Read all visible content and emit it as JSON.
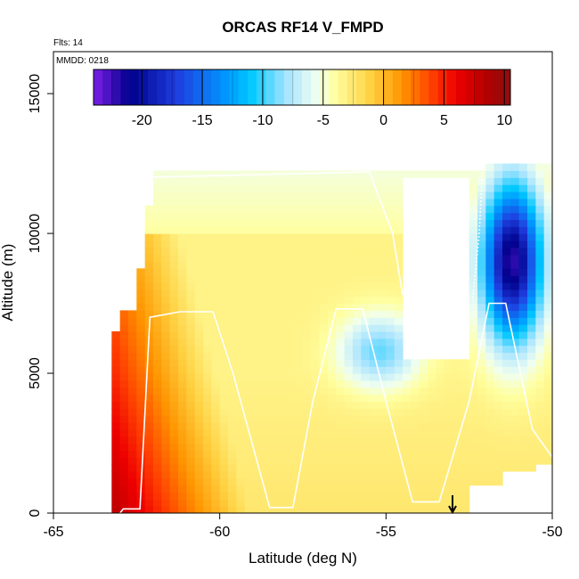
{
  "chart_data": {
    "type": "heatmap",
    "title": "ORCAS RF14 V_FMPD",
    "annotations": {
      "flights": "Flts: 14",
      "date": "MMDD: 0218"
    },
    "xlabel": "Latitude (deg N)",
    "ylabel": "Altitude (m)",
    "xlim": [
      -65,
      -50
    ],
    "ylim": [
      0,
      16500
    ],
    "xticks": [
      -65,
      -60,
      -55,
      -50
    ],
    "xtick_labels": [
      "-65",
      "-60",
      "-55",
      "-50"
    ],
    "yticks": [
      0,
      5000,
      10000,
      15000
    ],
    "ytick_labels": [
      "0",
      "5000",
      "10000",
      "15000"
    ],
    "colorbar": {
      "range": [
        -24,
        10.5
      ],
      "ticks": [
        -20,
        -15,
        -10,
        -5,
        0,
        5,
        10
      ],
      "tick_labels": [
        "-20",
        "-15",
        "-10",
        "-5",
        "0",
        "5",
        "10"
      ],
      "stops": [
        {
          "v": -24,
          "color": "#7b1fe8"
        },
        {
          "v": -21,
          "color": "#00008b"
        },
        {
          "v": -17,
          "color": "#1f3fe0"
        },
        {
          "v": -13,
          "color": "#0098ff"
        },
        {
          "v": -11,
          "color": "#00c8ff"
        },
        {
          "v": -8,
          "color": "#a8e4ff"
        },
        {
          "v": -5.5,
          "color": "#f0fff0"
        },
        {
          "v": -4,
          "color": "#ffffa0"
        },
        {
          "v": -1,
          "color": "#ffd040"
        },
        {
          "v": 1.5,
          "color": "#ff9500"
        },
        {
          "v": 4,
          "color": "#ff4000"
        },
        {
          "v": 6,
          "color": "#ee0000"
        },
        {
          "v": 8.5,
          "color": "#b40000"
        },
        {
          "v": 10.5,
          "color": "#8b1010"
        }
      ]
    },
    "arrow_marker_latitude": -53,
    "field": {
      "lat_range": [
        -63.5,
        -50
      ],
      "alt_range": [
        0,
        12500
      ],
      "alt_step": 250,
      "lat_step": 0.25
    },
    "flight_track": {
      "color": "#ffffff",
      "points": [
        [
          -63,
          0
        ],
        [
          -62.9,
          150
        ],
        [
          -62.6,
          150
        ],
        [
          -62.4,
          150
        ],
        [
          -62.1,
          7000
        ],
        [
          -61.2,
          7200
        ],
        [
          -60.2,
          7200
        ],
        [
          -59.6,
          5000
        ],
        [
          -58.5,
          200
        ],
        [
          -57.8,
          200
        ],
        [
          -57.2,
          4000
        ],
        [
          -56.5,
          7300
        ],
        [
          -55.7,
          7300
        ],
        [
          -55.0,
          4000
        ],
        [
          -54.2,
          400
        ],
        [
          -53.4,
          400
        ],
        [
          -52.5,
          4000
        ],
        [
          -51.9,
          7500
        ],
        [
          -51.4,
          7500
        ],
        [
          -50.6,
          3000
        ],
        [
          -50.0,
          2000
        ]
      ],
      "upper_leg": [
        [
          -62.5,
          12000
        ],
        [
          -55.5,
          12200
        ],
        [
          -54.8,
          10000
        ],
        [
          -54.5,
          7800
        ]
      ],
      "right_leg": [
        [
          -52.1,
          12200
        ],
        [
          -52.2,
          10000
        ],
        [
          -52.4,
          7600
        ]
      ]
    }
  }
}
